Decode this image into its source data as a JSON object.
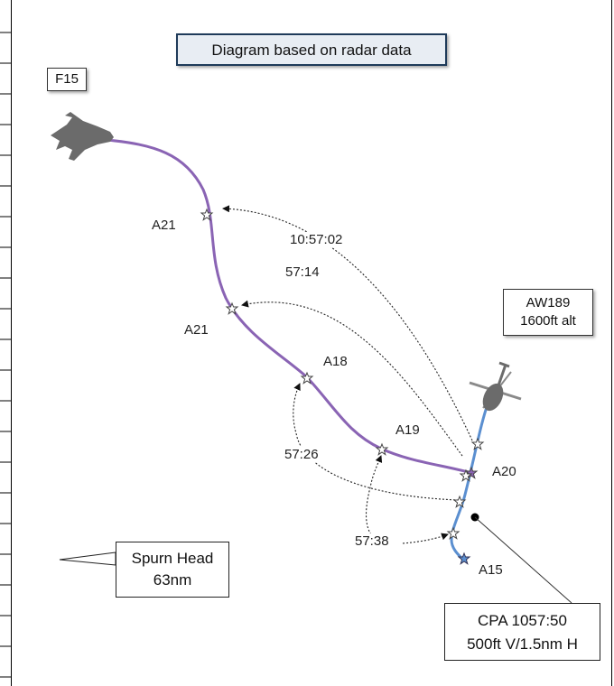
{
  "title": "Diagram based on radar data",
  "aircraft": {
    "f15_label": "F15",
    "aw189_line1": "AW189",
    "aw189_line2": "1600ft alt"
  },
  "points": {
    "a21_upper": "A21",
    "a21_lower": "A21",
    "a18": "A18",
    "a19": "A19",
    "a20": "A20",
    "a15": "A15"
  },
  "times": {
    "t1": "10:57:02",
    "t2": "57:14",
    "t3": "57:26",
    "t4": "57:38"
  },
  "callouts": {
    "spurn_line1": "Spurn Head",
    "spurn_line2": "63nm",
    "cpa_line1": "CPA 1057:50",
    "cpa_line2": "500ft V/1.5nm H"
  },
  "colors": {
    "f15_track": "#8a64b4",
    "aw189_track": "#5b8fd0",
    "aircraft_silhouette": "#6b6b6b"
  }
}
